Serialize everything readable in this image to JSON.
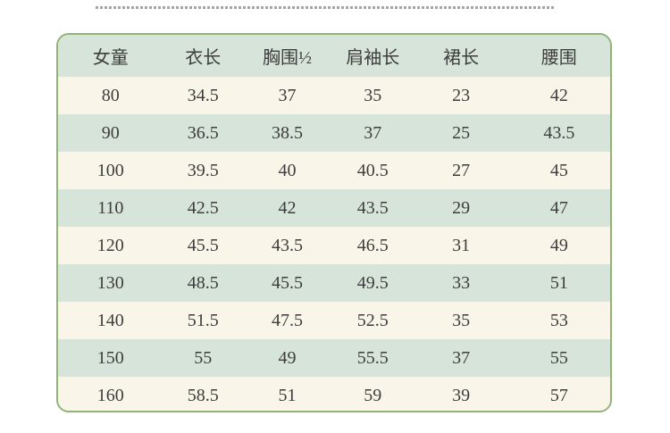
{
  "divider": {
    "style": "dotted",
    "color": "#a5a5a5"
  },
  "table": {
    "columns": [
      "女童",
      "衣长",
      "胸围½",
      "肩袖长",
      "裙长",
      "腰围"
    ],
    "rows": [
      [
        "80",
        "34.5",
        "37",
        "35",
        "23",
        "42"
      ],
      [
        "90",
        "36.5",
        "38.5",
        "37",
        "25",
        "43.5"
      ],
      [
        "100",
        "39.5",
        "40",
        "40.5",
        "27",
        "45"
      ],
      [
        "110",
        "42.5",
        "42",
        "43.5",
        "29",
        "47"
      ],
      [
        "120",
        "45.5",
        "43.5",
        "46.5",
        "31",
        "49"
      ],
      [
        "130",
        "48.5",
        "45.5",
        "49.5",
        "33",
        "51"
      ],
      [
        "140",
        "51.5",
        "47.5",
        "52.5",
        "35",
        "53"
      ],
      [
        "150",
        "55",
        "49",
        "55.5",
        "37",
        "55"
      ],
      [
        "160",
        "58.5",
        "51",
        "59",
        "39",
        "57"
      ]
    ],
    "colors": {
      "border_green": "#8fb475",
      "header_bg": "#d7e4d9",
      "row_green": "#d7e4d9",
      "row_cream": "#f9f5e8",
      "text": "#3d3d3d",
      "divider_gray": "#a5a5a5"
    }
  }
}
